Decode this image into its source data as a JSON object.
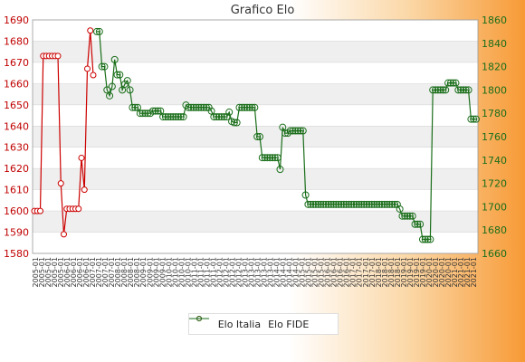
{
  "chart_data": {
    "type": "line",
    "title": "Grafico Elo",
    "y_left": {
      "min": 1580,
      "max": 1690,
      "ticks": [
        1580,
        1590,
        1600,
        1610,
        1620,
        1630,
        1640,
        1650,
        1660,
        1670,
        1680,
        1690
      ]
    },
    "y_right": {
      "min": 1660,
      "max": 1860,
      "ticks": [
        1660,
        1680,
        1700,
        1720,
        1740,
        1760,
        1780,
        1800,
        1820,
        1840,
        1860
      ]
    },
    "x_tick_labels": [
      "2005",
      "2006",
      "2007",
      "2008",
      "2009",
      "2010",
      "2011",
      "2012",
      "2013",
      "2014",
      "2015",
      "2016",
      "2017",
      "2018",
      "2019",
      "2020",
      "2021"
    ],
    "series": [
      {
        "name": "Elo Italia",
        "axis": "left",
        "color": "#cc0000",
        "values": [
          1600,
          1600,
          1600,
          1673,
          1673,
          1673,
          1673,
          1673,
          1673,
          1613,
          1589,
          1601,
          1601,
          1601,
          1601,
          1601,
          1625,
          1610,
          1667,
          1685,
          1664
        ]
      },
      {
        "name": "Elo FIDE",
        "axis": "right",
        "color": "#1a6e1a",
        "values": [
          1850,
          1850,
          1820,
          1820,
          1800,
          1795,
          1803,
          1826,
          1813,
          1813,
          1800,
          1805,
          1808,
          1800,
          1785,
          1785,
          1785,
          1780,
          1780,
          1780,
          1780,
          1780,
          1782,
          1782,
          1782,
          1782,
          1777,
          1777,
          1777,
          1777,
          1777,
          1777,
          1777,
          1777,
          1777,
          1787,
          1785,
          1785,
          1785,
          1785,
          1785,
          1785,
          1785,
          1785,
          1785,
          1782,
          1777,
          1777,
          1777,
          1777,
          1777,
          1777,
          1781,
          1773,
          1772,
          1772,
          1785,
          1785,
          1785,
          1785,
          1785,
          1785,
          1785,
          1760,
          1760,
          1742,
          1742,
          1742,
          1742,
          1742,
          1742,
          1742,
          1732,
          1768,
          1763,
          1763,
          1765,
          1765,
          1765,
          1765,
          1765,
          1765,
          1710,
          1702,
          1702,
          1702,
          1702,
          1702,
          1702,
          1702,
          1702,
          1702,
          1702,
          1702,
          1702,
          1702,
          1702,
          1702,
          1702,
          1702,
          1702,
          1702,
          1702,
          1702,
          1702,
          1702,
          1702,
          1702,
          1702,
          1702,
          1702,
          1702,
          1702,
          1702,
          1702,
          1702,
          1702,
          1702,
          1702,
          1698,
          1692,
          1692,
          1692,
          1692,
          1692,
          1685,
          1685,
          1685,
          1672,
          1672,
          1672,
          1672,
          1800,
          1800,
          1800,
          1800,
          1800,
          1800,
          1806,
          1806,
          1806,
          1806,
          1800,
          1800,
          1800,
          1800,
          1800,
          1775,
          1775,
          1775
        ],
        "note_x_offset": 33
      }
    ],
    "legend": [
      "Elo Italia",
      "Elo FIDE"
    ],
    "grid": true
  }
}
